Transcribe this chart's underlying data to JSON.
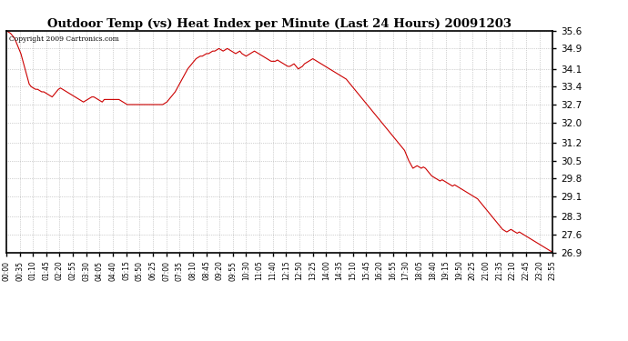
{
  "title": "Outdoor Temp (vs) Heat Index per Minute (Last 24 Hours) 20091203",
  "copyright_text": "Copyright 2009 Cartronics.com",
  "line_color": "#cc0000",
  "background_color": "#ffffff",
  "grid_color": "#aaaaaa",
  "ylim": [
    26.9,
    35.6
  ],
  "yticks": [
    26.9,
    27.6,
    28.3,
    29.1,
    29.8,
    30.5,
    31.2,
    32.0,
    32.7,
    33.4,
    34.1,
    34.9,
    35.6
  ],
  "xtick_labels": [
    "00:00",
    "00:35",
    "01:10",
    "01:45",
    "02:20",
    "02:55",
    "03:30",
    "04:05",
    "04:40",
    "05:15",
    "05:50",
    "06:25",
    "07:00",
    "07:35",
    "08:10",
    "08:45",
    "09:20",
    "09:55",
    "10:30",
    "11:05",
    "11:40",
    "12:15",
    "12:50",
    "13:25",
    "14:00",
    "14:35",
    "15:10",
    "15:45",
    "16:20",
    "16:55",
    "17:30",
    "18:05",
    "18:40",
    "19:15",
    "19:50",
    "20:25",
    "21:00",
    "21:35",
    "22:10",
    "22:45",
    "23:20",
    "23:55"
  ],
  "xlim_minutes": 1435,
  "xtick_interval": 35,
  "data_y_values": [
    35.6,
    35.55,
    35.5,
    35.4,
    35.3,
    35.1,
    34.9,
    34.7,
    34.4,
    34.1,
    33.8,
    33.5,
    33.4,
    33.35,
    33.3,
    33.3,
    33.25,
    33.2,
    33.2,
    33.15,
    33.1,
    33.05,
    33.0,
    33.1,
    33.2,
    33.3,
    33.35,
    33.3,
    33.25,
    33.2,
    33.15,
    33.1,
    33.05,
    33.0,
    32.95,
    32.9,
    32.85,
    32.8,
    32.85,
    32.9,
    32.95,
    33.0,
    33.0,
    32.95,
    32.9,
    32.85,
    32.8,
    32.9,
    32.9,
    32.9,
    32.9,
    32.9,
    32.9,
    32.9,
    32.9,
    32.85,
    32.8,
    32.75,
    32.7,
    32.7,
    32.7,
    32.7,
    32.7,
    32.7,
    32.7,
    32.7,
    32.7,
    32.7,
    32.7,
    32.7,
    32.7,
    32.7,
    32.7,
    32.7,
    32.7,
    32.7,
    32.75,
    32.8,
    32.9,
    33.0,
    33.1,
    33.2,
    33.35,
    33.5,
    33.65,
    33.8,
    33.95,
    34.1,
    34.2,
    34.3,
    34.4,
    34.5,
    34.55,
    34.6,
    34.6,
    34.65,
    34.7,
    34.7,
    34.75,
    34.8,
    34.8,
    34.85,
    34.9,
    34.85,
    34.8,
    34.85,
    34.9,
    34.85,
    34.8,
    34.75,
    34.7,
    34.75,
    34.8,
    34.7,
    34.65,
    34.6,
    34.65,
    34.7,
    34.75,
    34.8,
    34.75,
    34.7,
    34.65,
    34.6,
    34.55,
    34.5,
    34.45,
    34.4,
    34.4,
    34.4,
    34.45,
    34.4,
    34.35,
    34.3,
    34.25,
    34.2,
    34.2,
    34.25,
    34.3,
    34.2,
    34.1,
    34.15,
    34.2,
    34.3,
    34.35,
    34.4,
    34.45,
    34.5,
    34.45,
    34.4,
    34.35,
    34.3,
    34.25,
    34.2,
    34.15,
    34.1,
    34.05,
    34.0,
    33.95,
    33.9,
    33.85,
    33.8,
    33.75,
    33.7,
    33.6,
    33.5,
    33.4,
    33.3,
    33.2,
    33.1,
    33.0,
    32.9,
    32.8,
    32.7,
    32.6,
    32.5,
    32.4,
    32.3,
    32.2,
    32.1,
    32.0,
    31.9,
    31.8,
    31.7,
    31.6,
    31.5,
    31.4,
    31.3,
    31.2,
    31.1,
    31.0,
    30.9,
    30.7,
    30.5,
    30.35,
    30.2,
    30.25,
    30.3,
    30.25,
    30.2,
    30.25,
    30.2,
    30.1,
    30.0,
    29.9,
    29.85,
    29.8,
    29.75,
    29.7,
    29.75,
    29.7,
    29.65,
    29.6,
    29.55,
    29.5,
    29.55,
    29.5,
    29.45,
    29.4,
    29.35,
    29.3,
    29.25,
    29.2,
    29.15,
    29.1,
    29.05,
    29.0,
    28.9,
    28.8,
    28.7,
    28.6,
    28.5,
    28.4,
    28.3,
    28.2,
    28.1,
    28.0,
    27.9,
    27.8,
    27.75,
    27.7,
    27.75,
    27.8,
    27.75,
    27.7,
    27.65,
    27.7,
    27.65,
    27.6,
    27.55,
    27.5,
    27.45,
    27.4,
    27.35,
    27.3,
    27.25,
    27.2,
    27.15,
    27.1,
    27.05,
    27.0,
    26.95,
    26.9
  ]
}
